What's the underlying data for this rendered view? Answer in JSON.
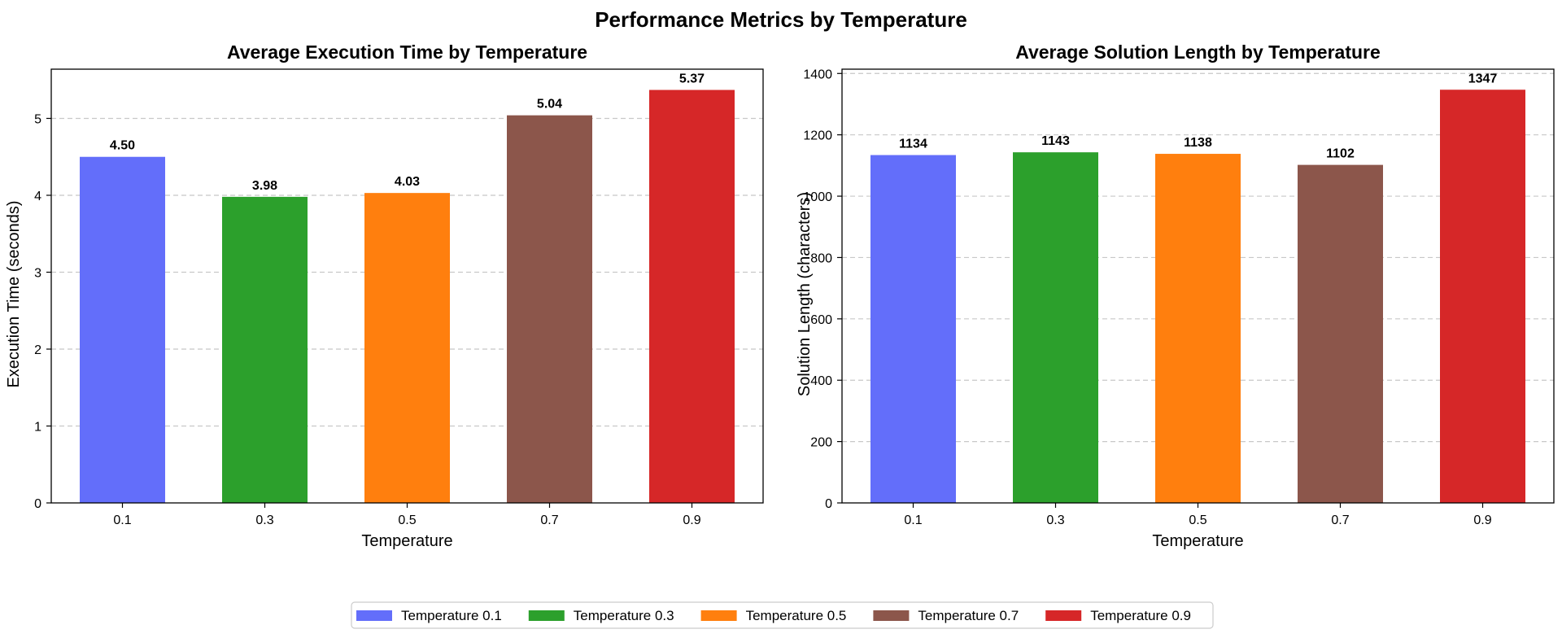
{
  "figure": {
    "title": "Performance Metrics by Temperature"
  },
  "chart_data": [
    {
      "type": "bar",
      "title": "Average Execution Time by Temperature",
      "xlabel": "Temperature",
      "ylabel": "Execution Time (seconds)",
      "categories": [
        "0.1",
        "0.3",
        "0.5",
        "0.7",
        "0.9"
      ],
      "values": [
        4.5,
        3.98,
        4.03,
        5.04,
        5.37
      ],
      "value_labels": [
        "4.50",
        "3.98",
        "4.03",
        "5.04",
        "5.37"
      ],
      "yticks": [
        0,
        1,
        2,
        3,
        4,
        5
      ],
      "ylim": [
        0,
        5.64
      ],
      "grid": "y-dashed",
      "colors": [
        "#636efa",
        "#2ca02c",
        "#ff7f0e",
        "#8c564b",
        "#d62728"
      ]
    },
    {
      "type": "bar",
      "title": "Average Solution Length by Temperature",
      "xlabel": "Temperature",
      "ylabel": "Solution Length (characters)",
      "categories": [
        "0.1",
        "0.3",
        "0.5",
        "0.7",
        "0.9"
      ],
      "values": [
        1134,
        1143,
        1138,
        1102,
        1347
      ],
      "value_labels": [
        "1134",
        "1143",
        "1138",
        "1102",
        "1347"
      ],
      "yticks": [
        0,
        200,
        400,
        600,
        800,
        1000,
        1200,
        1400
      ],
      "ylim": [
        0,
        1414
      ],
      "grid": "y-dashed",
      "colors": [
        "#636efa",
        "#2ca02c",
        "#ff7f0e",
        "#8c564b",
        "#d62728"
      ]
    }
  ],
  "legend": {
    "placement": "bottom-center",
    "items": [
      {
        "label": "Temperature 0.1",
        "color": "#636efa"
      },
      {
        "label": "Temperature 0.3",
        "color": "#2ca02c"
      },
      {
        "label": "Temperature 0.5",
        "color": "#ff7f0e"
      },
      {
        "label": "Temperature 0.7",
        "color": "#8c564b"
      },
      {
        "label": "Temperature 0.9",
        "color": "#d62728"
      }
    ]
  }
}
